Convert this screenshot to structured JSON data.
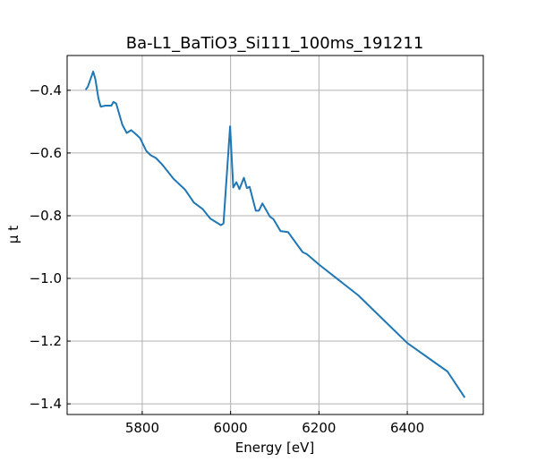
{
  "chart_data": {
    "type": "line",
    "title": "Ba-L1_BaTiO3_Si111_100ms_191211",
    "xlabel": "Energy [eV]",
    "ylabel": "μ t",
    "xlim": [
      5630,
      6572
    ],
    "ylim": [
      -1.434,
      -0.289
    ],
    "xticks": [
      5800,
      6000,
      6200,
      6400
    ],
    "xtick_labels": [
      "5800",
      "6000",
      "6200",
      "6400"
    ],
    "yticks": [
      -0.4,
      -0.6,
      -0.8,
      -1.0,
      -1.2,
      -1.4
    ],
    "ytick_labels": [
      "−0.4",
      "−0.6",
      "−0.8",
      "−1.0",
      "−1.2",
      "−1.4"
    ],
    "grid": true,
    "series": [
      {
        "name": "mu_t",
        "color": "#1f77b4",
        "x": [
          5672,
          5677,
          5689,
          5694,
          5701,
          5706,
          5717,
          5730,
          5735,
          5741,
          5755,
          5765,
          5775,
          5785,
          5795,
          5809,
          5819,
          5831,
          5846,
          5870,
          5897,
          5917,
          5937,
          5954,
          5978,
          5984,
          5999,
          6006,
          6013,
          6020,
          6030,
          6037,
          6043,
          6057,
          6064,
          6072,
          6089,
          6097,
          6113,
          6130,
          6163,
          6173,
          6201,
          6289,
          6400,
          6491,
          6530
        ],
        "y": [
          -0.398,
          -0.388,
          -0.34,
          -0.365,
          -0.426,
          -0.452,
          -0.449,
          -0.449,
          -0.437,
          -0.442,
          -0.51,
          -0.536,
          -0.527,
          -0.539,
          -0.552,
          -0.593,
          -0.607,
          -0.616,
          -0.638,
          -0.681,
          -0.717,
          -0.758,
          -0.779,
          -0.809,
          -0.83,
          -0.825,
          -0.515,
          -0.71,
          -0.693,
          -0.715,
          -0.679,
          -0.712,
          -0.708,
          -0.784,
          -0.784,
          -0.761,
          -0.803,
          -0.811,
          -0.849,
          -0.852,
          -0.916,
          -0.923,
          -0.957,
          -1.054,
          -1.206,
          -1.297,
          -1.38
        ]
      }
    ]
  }
}
